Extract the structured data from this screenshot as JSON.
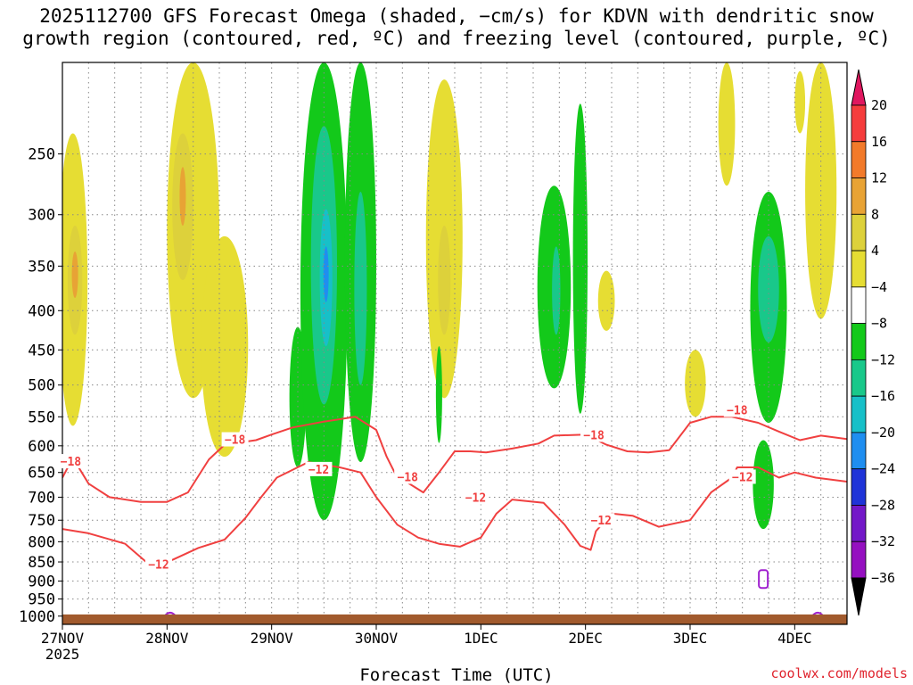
{
  "title_line1": "2025112700 GFS Forecast Omega (shaded, −cm/s) for KDVN with dendritic snow",
  "title_line2": "growth region (contoured, red, ºC) and freezing level (contoured, purple, ºC)",
  "credit": "coolwx.com/models",
  "chart_data": {
    "type": "heatmap",
    "title": "2025112700 GFS Forecast Omega (shaded, −cm/s) for KDVN with dendritic snow growth region (contoured, red, ºC) and freezing level (contoured, purple, ºC)",
    "xlabel": "Forecast Time (UTC)",
    "ylabel": "",
    "x_ticks": [
      "27NOV",
      "28NOV",
      "29NOV",
      "30NOV",
      "1DEC",
      "2DEC",
      "3DEC",
      "4DEC"
    ],
    "x_tick_year": "2025",
    "x_range_days": [
      0,
      7.5
    ],
    "y_ticks": [
      "250",
      "300",
      "350",
      "400",
      "450",
      "500",
      "550",
      "600",
      "650",
      "700",
      "750",
      "800",
      "850",
      "900",
      "950",
      "1000"
    ],
    "y_range_hpa": [
      190,
      1025
    ],
    "colorbar_labels": [
      "20",
      "16",
      "12",
      "8",
      "4",
      "−4",
      "−8",
      "−12",
      "−16",
      "−20",
      "−24",
      "−28",
      "−32",
      "−36"
    ],
    "colorbar_colors": [
      "#e0175f",
      "#f53c3c",
      "#f27a2a",
      "#e8a335",
      "#ddd13b",
      "#e6dd33",
      "#ffffff",
      "#13c91a",
      "#19c88a",
      "#17c0c8",
      "#1f8ef0",
      "#1f34d8",
      "#7318c8",
      "#9510c0",
      "#a0a0a0",
      "#000000"
    ],
    "omega_regions": [
      {
        "cat": "4",
        "day": 0.1,
        "p": 400,
        "wd": 0.28,
        "hp": 330
      },
      {
        "cat": "8",
        "day": 0.12,
        "p": 370,
        "wd": 0.14,
        "hp": 120
      },
      {
        "cat": "12",
        "day": 0.12,
        "p": 360,
        "wd": 0.06,
        "hp": 50
      },
      {
        "cat": "4",
        "day": 1.25,
        "p": 330,
        "wd": 0.5,
        "hp": 380
      },
      {
        "cat": "8",
        "day": 1.15,
        "p": 300,
        "wd": 0.2,
        "hp": 130
      },
      {
        "cat": "12",
        "day": 1.15,
        "p": 285,
        "wd": 0.06,
        "hp": 50
      },
      {
        "cat": "4",
        "day": 1.55,
        "p": 470,
        "wd": 0.45,
        "hp": 300
      },
      {
        "cat": "-4",
        "day": 2.25,
        "p": 530,
        "wd": 0.16,
        "hp": 220
      },
      {
        "cat": "-4",
        "day": 2.5,
        "p": 440,
        "wd": 0.45,
        "hp": 620
      },
      {
        "cat": "-8",
        "day": 2.5,
        "p": 380,
        "wd": 0.25,
        "hp": 300
      },
      {
        "cat": "-12",
        "day": 2.52,
        "p": 370,
        "wd": 0.12,
        "hp": 150
      },
      {
        "cat": "-16",
        "day": 2.52,
        "p": 360,
        "wd": 0.05,
        "hp": 60
      },
      {
        "cat": "-4",
        "day": 2.85,
        "p": 380,
        "wd": 0.3,
        "hp": 500
      },
      {
        "cat": "-8",
        "day": 2.85,
        "p": 390,
        "wd": 0.12,
        "hp": 220
      },
      {
        "cat": "4",
        "day": 3.65,
        "p": 360,
        "wd": 0.35,
        "hp": 320
      },
      {
        "cat": "8",
        "day": 3.65,
        "p": 370,
        "wd": 0.12,
        "hp": 120
      },
      {
        "cat": "-4",
        "day": 3.6,
        "p": 520,
        "wd": 0.06,
        "hp": 150
      },
      {
        "cat": "-4",
        "day": 4.7,
        "p": 390,
        "wd": 0.32,
        "hp": 230
      },
      {
        "cat": "-4",
        "day": 4.95,
        "p": 380,
        "wd": 0.14,
        "hp": 330
      },
      {
        "cat": "-8",
        "day": 4.72,
        "p": 380,
        "wd": 0.08,
        "hp": 100
      },
      {
        "cat": "4",
        "day": 5.2,
        "p": 390,
        "wd": 0.16,
        "hp": 70
      },
      {
        "cat": "4",
        "day": 6.05,
        "p": 500,
        "wd": 0.2,
        "hp": 100
      },
      {
        "cat": "-4",
        "day": 6.75,
        "p": 420,
        "wd": 0.35,
        "hp": 280
      },
      {
        "cat": "-8",
        "day": 6.75,
        "p": 380,
        "wd": 0.2,
        "hp": 120
      },
      {
        "cat": "-4",
        "day": 6.7,
        "p": 680,
        "wd": 0.2,
        "hp": 180
      },
      {
        "cat": "4",
        "day": 6.35,
        "p": 225,
        "wd": 0.16,
        "hp": 100
      },
      {
        "cat": "4",
        "day": 7.25,
        "p": 300,
        "wd": 0.3,
        "hp": 220
      },
      {
        "cat": "4",
        "day": 7.05,
        "p": 215,
        "wd": 0.1,
        "hp": 40
      }
    ],
    "dgz_contours": [
      {
        "name": "-18C isotherm",
        "color": "#f04040",
        "points": [
          [
            0,
            660
          ],
          [
            0.1,
            622
          ],
          [
            0.25,
            672
          ],
          [
            0.45,
            700
          ],
          [
            0.75,
            710
          ],
          [
            1.0,
            710
          ],
          [
            1.2,
            690
          ],
          [
            1.4,
            625
          ],
          [
            1.55,
            598
          ],
          [
            1.85,
            590
          ],
          [
            2.0,
            580
          ],
          [
            2.2,
            568
          ],
          [
            2.5,
            558
          ],
          [
            2.8,
            550
          ],
          [
            3.0,
            572
          ],
          [
            3.1,
            620
          ],
          [
            3.2,
            660
          ],
          [
            3.3,
            670
          ],
          [
            3.45,
            690
          ],
          [
            3.6,
            650
          ],
          [
            3.75,
            610
          ],
          [
            3.9,
            610
          ],
          [
            4.05,
            612
          ],
          [
            4.3,
            605
          ],
          [
            4.55,
            596
          ],
          [
            4.7,
            582
          ],
          [
            5.0,
            580
          ],
          [
            5.2,
            598
          ],
          [
            5.4,
            610
          ],
          [
            5.6,
            612
          ],
          [
            5.8,
            608
          ],
          [
            6.0,
            560
          ],
          [
            6.2,
            550
          ],
          [
            6.4,
            550
          ],
          [
            6.65,
            560
          ],
          [
            6.85,
            575
          ],
          [
            7.05,
            590
          ],
          [
            7.25,
            582
          ],
          [
            7.5,
            588
          ]
        ],
        "labels": [
          {
            "text": "−18",
            "day": 0.08,
            "p": 630
          },
          {
            "text": "−18",
            "day": 1.65,
            "p": 590
          },
          {
            "text": "−18",
            "day": 3.3,
            "p": 660
          },
          {
            "text": "−18",
            "day": 5.08,
            "p": 582
          },
          {
            "text": "−18",
            "day": 6.45,
            "p": 540
          }
        ]
      },
      {
        "name": "-12C isotherm",
        "color": "#f04040",
        "points": [
          [
            0,
            770
          ],
          [
            0.25,
            780
          ],
          [
            0.6,
            805
          ],
          [
            0.8,
            850
          ],
          [
            1.05,
            845
          ],
          [
            1.3,
            815
          ],
          [
            1.55,
            795
          ],
          [
            1.75,
            745
          ],
          [
            1.9,
            700
          ],
          [
            2.05,
            660
          ],
          [
            2.35,
            630
          ],
          [
            2.65,
            640
          ],
          [
            2.85,
            650
          ],
          [
            3.0,
            700
          ],
          [
            3.2,
            760
          ],
          [
            3.4,
            790
          ],
          [
            3.6,
            805
          ],
          [
            3.8,
            812
          ],
          [
            4.0,
            790
          ],
          [
            4.15,
            735
          ],
          [
            4.3,
            705
          ],
          [
            4.6,
            712
          ],
          [
            4.8,
            760
          ],
          [
            4.95,
            810
          ],
          [
            5.05,
            820
          ],
          [
            5.1,
            775
          ],
          [
            5.25,
            735
          ],
          [
            5.45,
            740
          ],
          [
            5.7,
            765
          ],
          [
            6.0,
            750
          ],
          [
            6.2,
            690
          ],
          [
            6.4,
            660
          ],
          [
            6.45,
            640
          ],
          [
            6.65,
            640
          ],
          [
            6.85,
            660
          ],
          [
            7.0,
            650
          ],
          [
            7.2,
            660
          ],
          [
            7.5,
            668
          ]
        ],
        "labels": [
          {
            "text": "−12",
            "day": 0.92,
            "p": 858
          },
          {
            "text": "−12",
            "day": 2.45,
            "p": 645
          },
          {
            "text": "−12",
            "day": 3.95,
            "p": 702
          },
          {
            "text": "−12",
            "day": 5.15,
            "p": 752
          },
          {
            "text": "−12",
            "day": 6.5,
            "p": 660
          }
        ]
      }
    ],
    "freezing_level_contours": [
      {
        "name": "0C near surface",
        "color": "#a020d0",
        "day": 1.03,
        "p": 995
      },
      {
        "name": "0C near surface",
        "color": "#a020d0",
        "day": 7.22,
        "p": 995
      },
      {
        "name": "0C loop",
        "color": "#a020d0",
        "day": 6.7,
        "p": 895
      }
    ],
    "surface": {
      "color": "#a15a2d",
      "p_top": 995
    }
  }
}
